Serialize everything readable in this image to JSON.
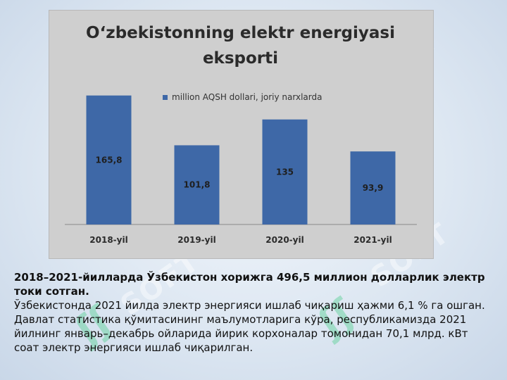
{
  "watermark": {
    "brand": "SOFT",
    "mark": "ʃʃ"
  },
  "chart_data": {
    "type": "bar",
    "title": "O‘zbekistonning elektr energiyasi eksporti",
    "title_lines": [
      "O‘zbekistonning elektr energiyasi",
      "eksporti"
    ],
    "categories": [
      "2018-yil",
      "2019-yil",
      "2020-yil",
      "2021-yil"
    ],
    "series": [
      {
        "name": "million AQSH dollari, joriy narxlarda",
        "values": [
          165.8,
          101.8,
          135,
          93.9
        ]
      }
    ],
    "value_labels": [
      "165,8",
      "101,8",
      "135",
      "93,9"
    ],
    "ylim": [
      0,
      180
    ],
    "xlabel": "",
    "ylabel": "",
    "grid": false,
    "legend_position": "top",
    "bar_color": "#3e68a7"
  },
  "caption": {
    "heading": "2018–2021-йилларда Ўзбекистон хорижга 496,5 миллион долларлик электр токи сотган.",
    "body": "Ўзбекистонда 2021 йилда электр энергияси ишлаб чиқариш ҳажми 6,1 % га ошган. Давлат статистика қўмитасининг маълумотларига кўра, республикамизда 2021 йилнинг январь–декабрь ойларида йирик корхоналар томонидан 70,1 млрд. кВт соат электр энергияси ишлаб чиқарилган."
  }
}
